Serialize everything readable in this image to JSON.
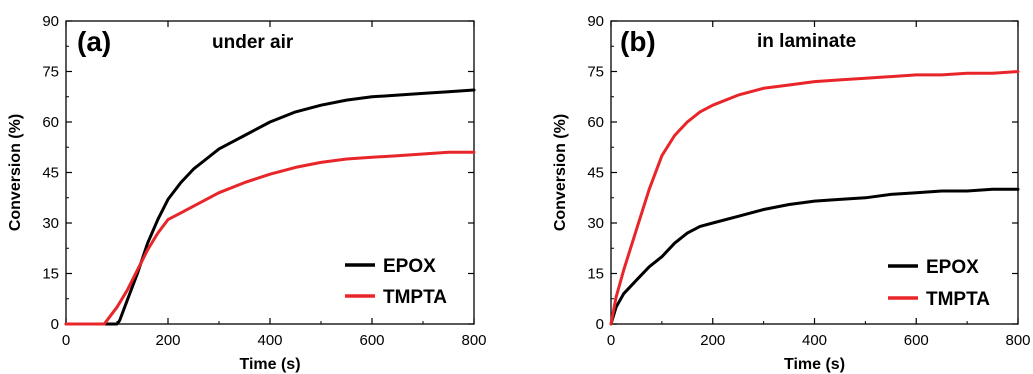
{
  "colors": {
    "EPOX": "#000000",
    "TMPTA": "#e8262a"
  },
  "chart_data": [
    {
      "type": "line",
      "panel_label": "(a)",
      "title": "under air",
      "xlabel": "Time (s)",
      "ylabel": "Conversion (%)",
      "xlim": [
        0,
        800
      ],
      "ylim": [
        0,
        90
      ],
      "xticks": [
        0,
        200,
        400,
        600,
        800
      ],
      "yticks": [
        0,
        15,
        30,
        45,
        60,
        75,
        90
      ],
      "legend_position": "bottom-right",
      "series": [
        {
          "name": "EPOX",
          "x": [
            0,
            100,
            105,
            120,
            140,
            160,
            180,
            200,
            225,
            250,
            275,
            300,
            325,
            350,
            375,
            400,
            450,
            500,
            550,
            600,
            650,
            700,
            750,
            800
          ],
          "y": [
            0,
            0,
            1,
            7,
            15,
            24,
            31,
            37,
            42,
            46,
            49,
            52,
            54,
            56,
            58,
            60,
            63,
            65,
            66.5,
            67.5,
            68,
            68.5,
            69,
            69.5
          ]
        },
        {
          "name": "TMPTA",
          "x": [
            0,
            75,
            85,
            100,
            120,
            140,
            160,
            180,
            200,
            225,
            250,
            300,
            350,
            400,
            450,
            500,
            550,
            600,
            650,
            700,
            750,
            800
          ],
          "y": [
            0,
            0,
            2,
            5,
            10,
            16,
            22,
            27,
            31,
            33,
            35,
            39,
            42,
            44.5,
            46.5,
            48,
            49,
            49.5,
            50,
            50.5,
            51,
            51
          ]
        }
      ]
    },
    {
      "type": "line",
      "panel_label": "(b)",
      "title": "in laminate",
      "xlabel": "Time (s)",
      "ylabel": "Conversion (%)",
      "xlim": [
        0,
        800
      ],
      "ylim": [
        0,
        90
      ],
      "xticks": [
        0,
        200,
        400,
        600,
        800
      ],
      "yticks": [
        0,
        15,
        30,
        45,
        60,
        75,
        90
      ],
      "legend_position": "bottom-right",
      "series": [
        {
          "name": "EPOX",
          "x": [
            0,
            10,
            25,
            50,
            75,
            100,
            125,
            150,
            175,
            200,
            250,
            300,
            350,
            400,
            450,
            500,
            550,
            600,
            650,
            700,
            750,
            800
          ],
          "y": [
            0,
            5,
            9,
            13,
            17,
            20,
            24,
            27,
            29,
            30,
            32,
            34,
            35.5,
            36.5,
            37,
            37.5,
            38.5,
            39,
            39.5,
            39.5,
            40,
            40
          ]
        },
        {
          "name": "TMPTA",
          "x": [
            0,
            10,
            25,
            50,
            75,
            100,
            125,
            150,
            175,
            200,
            250,
            300,
            350,
            400,
            450,
            500,
            550,
            600,
            650,
            700,
            750,
            800
          ],
          "y": [
            0,
            8,
            16,
            28,
            40,
            50,
            56,
            60,
            63,
            65,
            68,
            70,
            71,
            72,
            72.5,
            73,
            73.5,
            74,
            74,
            74.5,
            74.5,
            75
          ]
        }
      ]
    }
  ]
}
